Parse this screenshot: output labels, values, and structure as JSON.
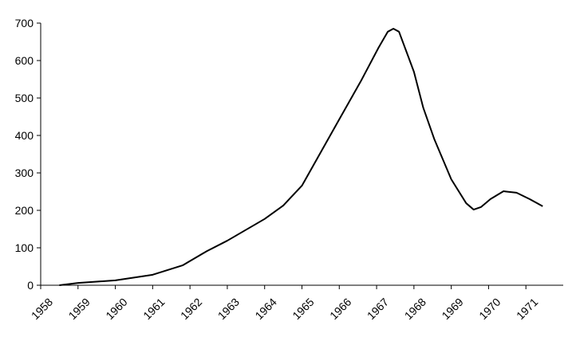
{
  "chart_data": {
    "type": "line",
    "x": [
      1958.5,
      1959,
      1960,
      1961,
      1961.8,
      1962.45,
      1963,
      1964,
      1964.5,
      1965,
      1966,
      1966.6,
      1967.05,
      1967.3,
      1967.45,
      1967.6,
      1968,
      1968.25,
      1968.55,
      1969,
      1969.4,
      1969.6,
      1969.8,
      1970.05,
      1970.4,
      1970.75,
      1971.1,
      1971.45
    ],
    "values": [
      0,
      6,
      13,
      28,
      53,
      91,
      119,
      177,
      213,
      266,
      443,
      549,
      634,
      677,
      685,
      677,
      570,
      474,
      389,
      283,
      219,
      202,
      209,
      230,
      251,
      247,
      230,
      211
    ],
    "color": "#000000",
    "xlim": [
      1958,
      1972
    ],
    "xticks": [
      1958,
      1959,
      1960,
      1961,
      1962,
      1963,
      1964,
      1965,
      1966,
      1967,
      1968,
      1969,
      1970,
      1971
    ],
    "ylim": [
      0,
      700
    ],
    "yticks": [
      0,
      100,
      200,
      300,
      400,
      500,
      600,
      700
    ],
    "grid": false
  }
}
